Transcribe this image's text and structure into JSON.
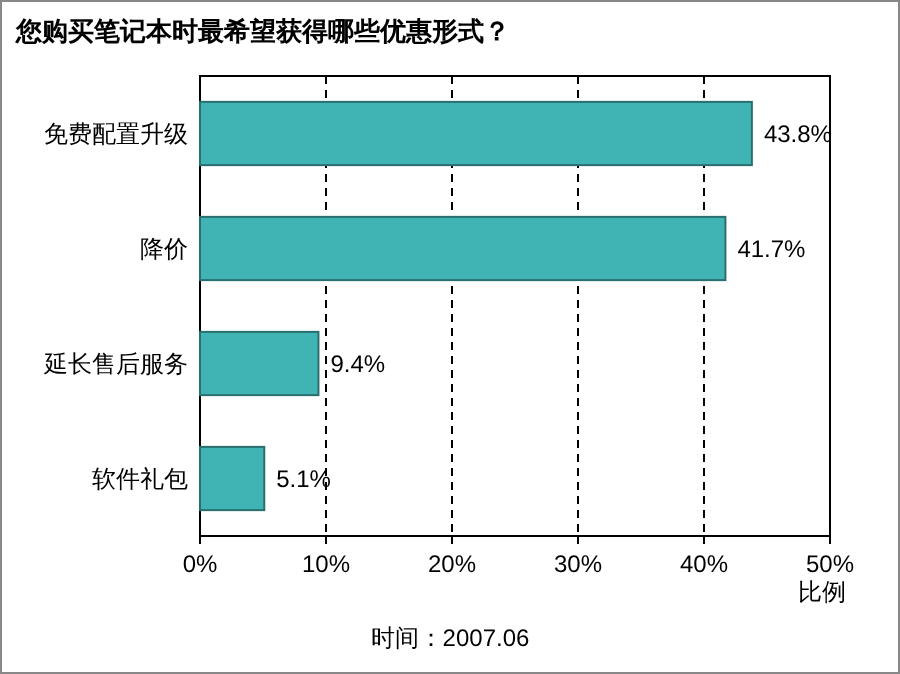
{
  "chart_data": {
    "type": "bar",
    "orientation": "horizontal",
    "title": "您购买笔记本时最希望获得哪些优惠形式？",
    "xlabel": "比例",
    "categories": [
      "免费配置升级",
      "降价",
      "延长售后服务",
      "软件礼包"
    ],
    "values": [
      43.8,
      41.7,
      9.4,
      5.1
    ],
    "value_labels": [
      "43.8%",
      "41.7%",
      "9.4%",
      "5.1%"
    ],
    "color": "#40b4b4",
    "xlim": [
      0,
      50
    ],
    "xticks": [
      {
        "value": 0,
        "label": "0%"
      },
      {
        "value": 10,
        "label": "10%"
      },
      {
        "value": 20,
        "label": "20%"
      },
      {
        "value": 30,
        "label": "30%"
      },
      {
        "value": 40,
        "label": "40%"
      },
      {
        "value": 50,
        "label": "50%"
      }
    ],
    "grid": "x",
    "annotations": [
      "时间：2007.06"
    ]
  }
}
